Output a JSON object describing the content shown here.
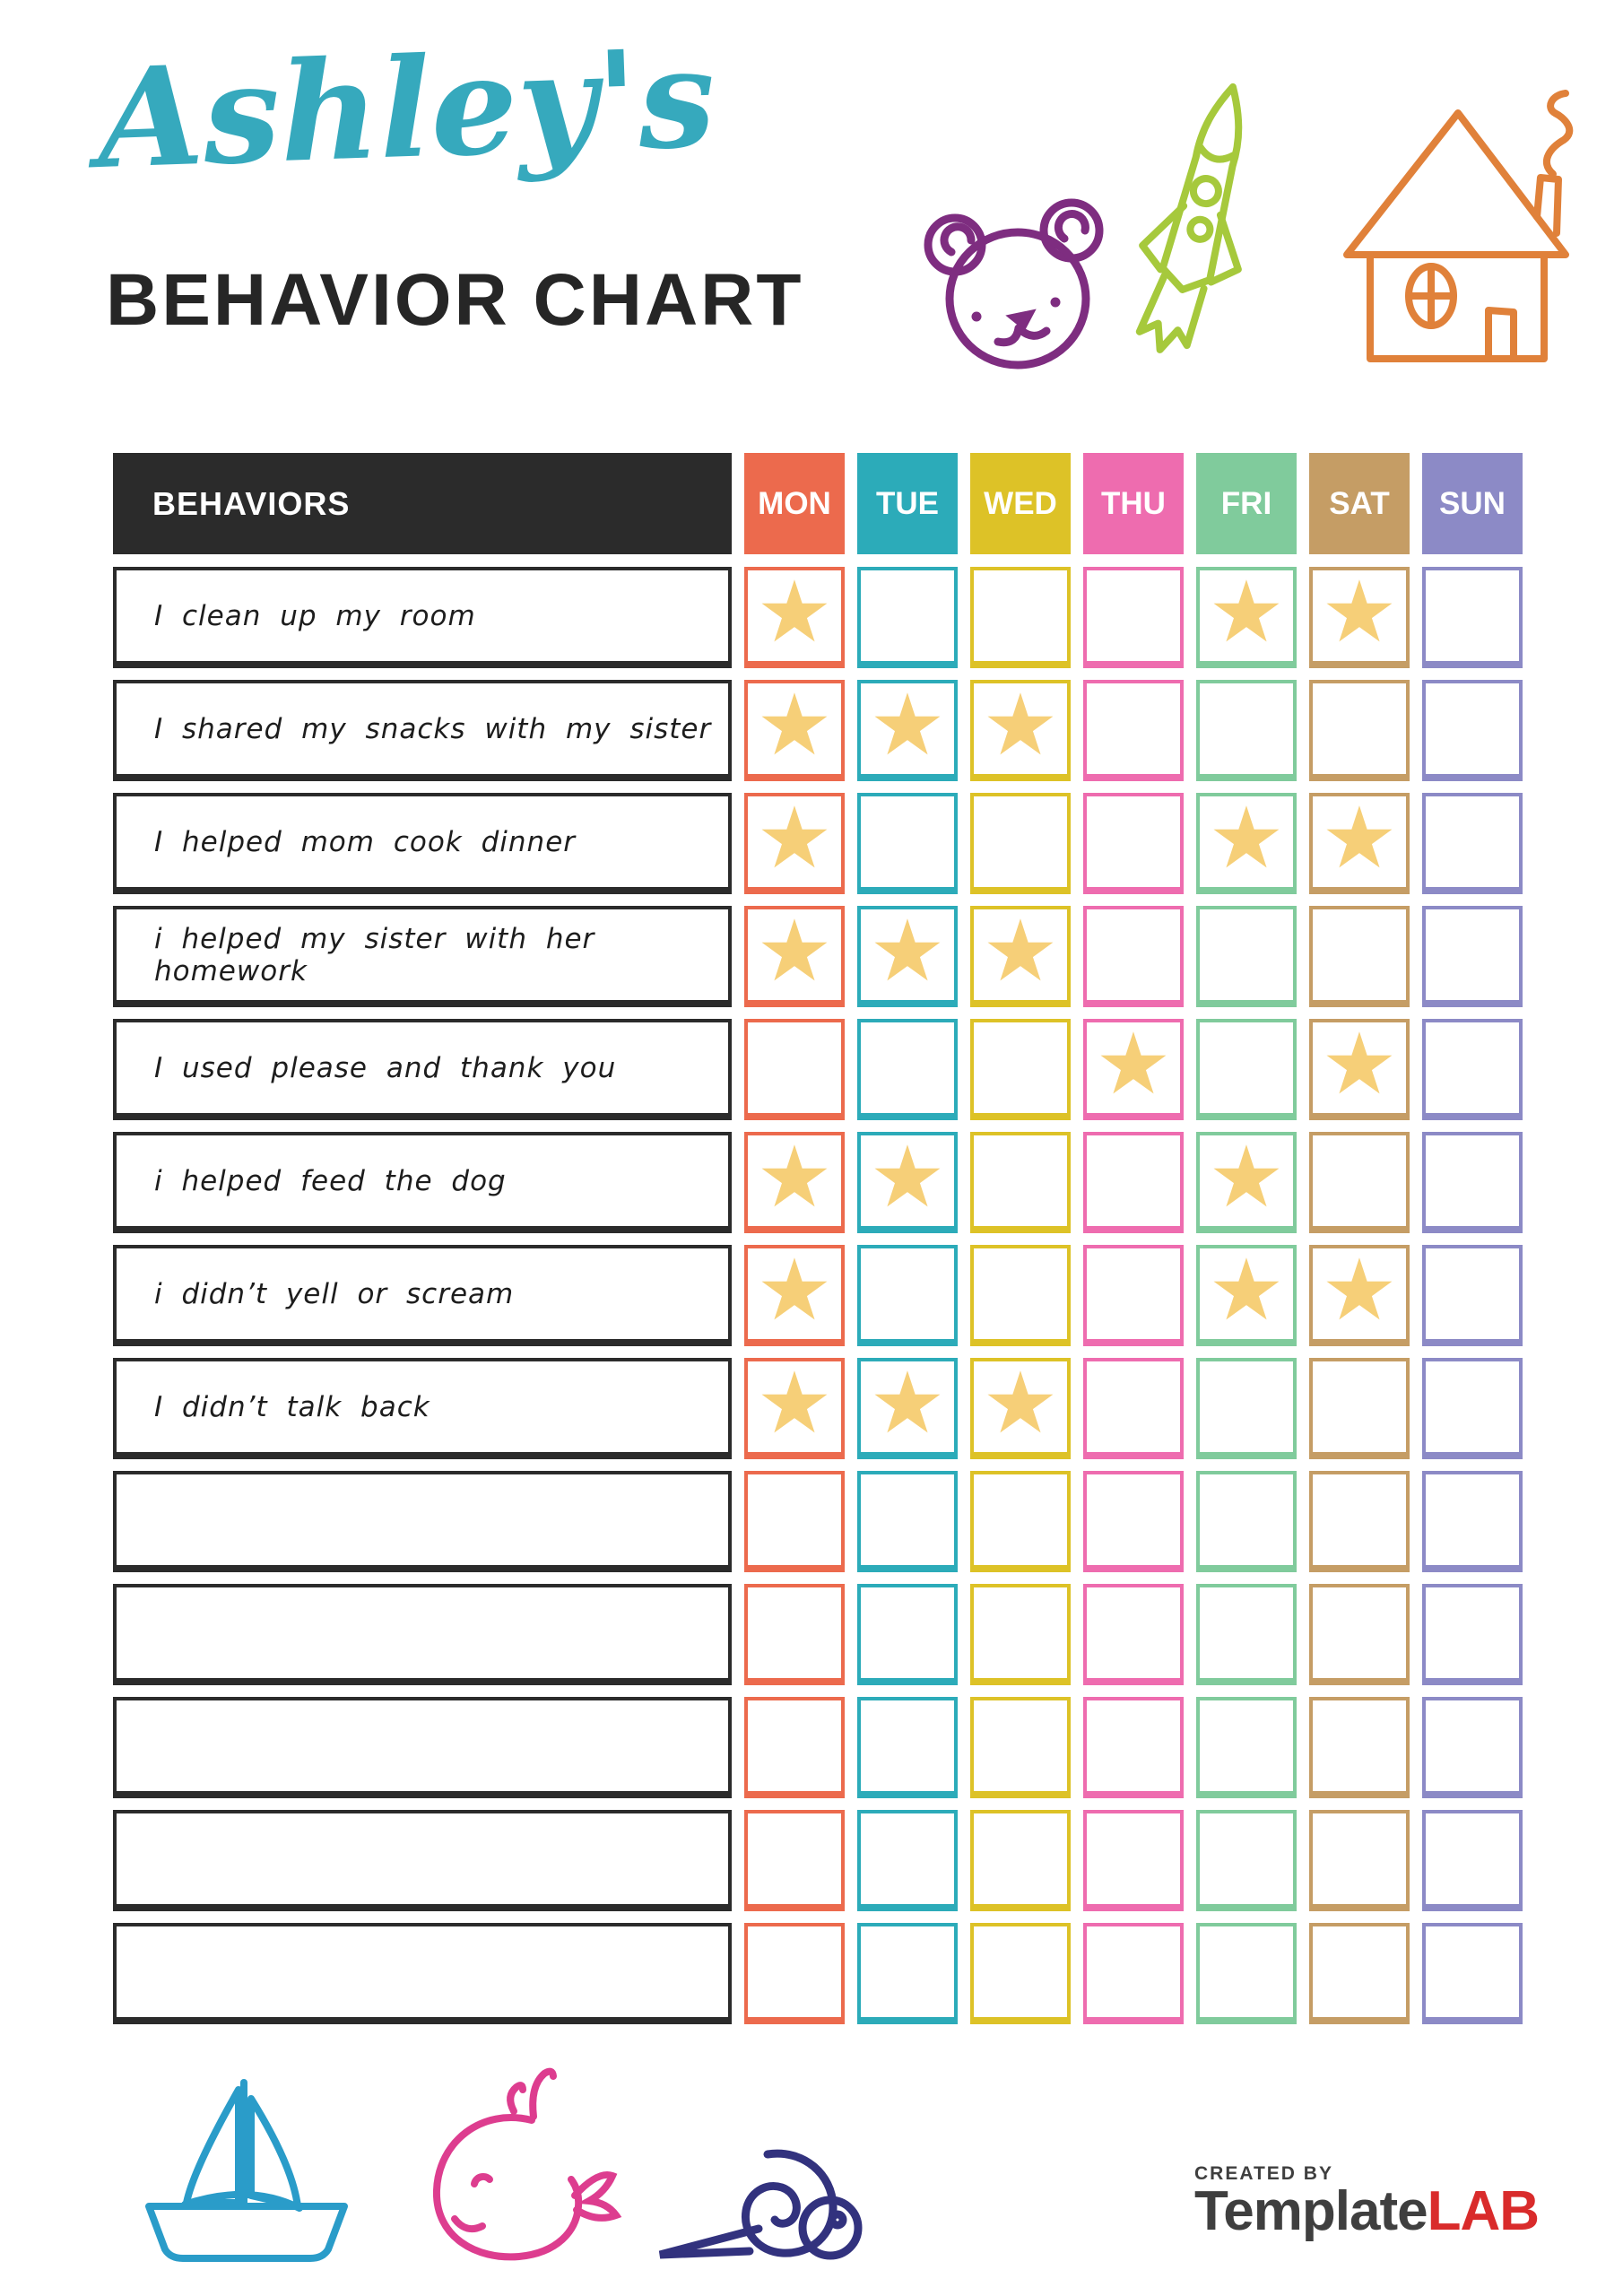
{
  "header": {
    "child_name": "Ashley's",
    "title": "BEHAVIOR CHART"
  },
  "doodles": {
    "top": [
      "bear-icon",
      "rocket-icon",
      "house-icon"
    ],
    "bottom": [
      "sailboat-icon",
      "whale-icon",
      "snail-icon"
    ]
  },
  "table": {
    "behaviors_header": "BEHAVIORS",
    "days": [
      "MON",
      "TUE",
      "WED",
      "THU",
      "FRI",
      "SAT",
      "SUN"
    ],
    "day_colors": [
      "#ec6a4d",
      "#2cabb9",
      "#ddc227",
      "#ee6caf",
      "#80cb9c",
      "#c59d65",
      "#8c8ac6"
    ],
    "star_glyph": "★",
    "star_color": "#f6cf78",
    "rows": [
      {
        "label": "I clean up my room",
        "stars": [
          1,
          0,
          0,
          0,
          1,
          1,
          0
        ]
      },
      {
        "label": "I shared my snacks with my sister",
        "stars": [
          1,
          1,
          1,
          0,
          0,
          0,
          0
        ]
      },
      {
        "label": "I helped mom cook dinner",
        "stars": [
          1,
          0,
          0,
          0,
          1,
          1,
          0
        ]
      },
      {
        "label": "i helped my sister with her homework",
        "stars": [
          1,
          1,
          1,
          0,
          0,
          0,
          0
        ]
      },
      {
        "label": "I used please and thank you",
        "stars": [
          0,
          0,
          0,
          1,
          0,
          1,
          0
        ]
      },
      {
        "label": "i helped feed the dog",
        "stars": [
          1,
          1,
          0,
          0,
          1,
          0,
          0
        ]
      },
      {
        "label": "i didn’t yell or scream",
        "stars": [
          1,
          0,
          0,
          0,
          1,
          1,
          0
        ]
      },
      {
        "label": "I didn’t talk back",
        "stars": [
          1,
          1,
          1,
          0,
          0,
          0,
          0
        ]
      },
      {
        "label": "",
        "stars": [
          0,
          0,
          0,
          0,
          0,
          0,
          0
        ]
      },
      {
        "label": "",
        "stars": [
          0,
          0,
          0,
          0,
          0,
          0,
          0
        ]
      },
      {
        "label": "",
        "stars": [
          0,
          0,
          0,
          0,
          0,
          0,
          0
        ]
      },
      {
        "label": "",
        "stars": [
          0,
          0,
          0,
          0,
          0,
          0,
          0
        ]
      },
      {
        "label": "",
        "stars": [
          0,
          0,
          0,
          0,
          0,
          0,
          0
        ]
      }
    ]
  },
  "footer": {
    "created_by": "CREATED BY",
    "brand_name": "Template",
    "brand_accent": "LAB"
  },
  "colors": {
    "title_accent": "#36a9bd",
    "heading_text": "#262626",
    "behaviors_header_bg": "#2b2b2b",
    "bear": "#7e2d80",
    "rocket": "#a6c93c",
    "house": "#e0813a",
    "sailboat": "#2a9cc9",
    "whale": "#dd3d8f",
    "snail": "#32327e",
    "brand_text": "#3f3f3f",
    "brand_accent": "#d92b2b"
  }
}
